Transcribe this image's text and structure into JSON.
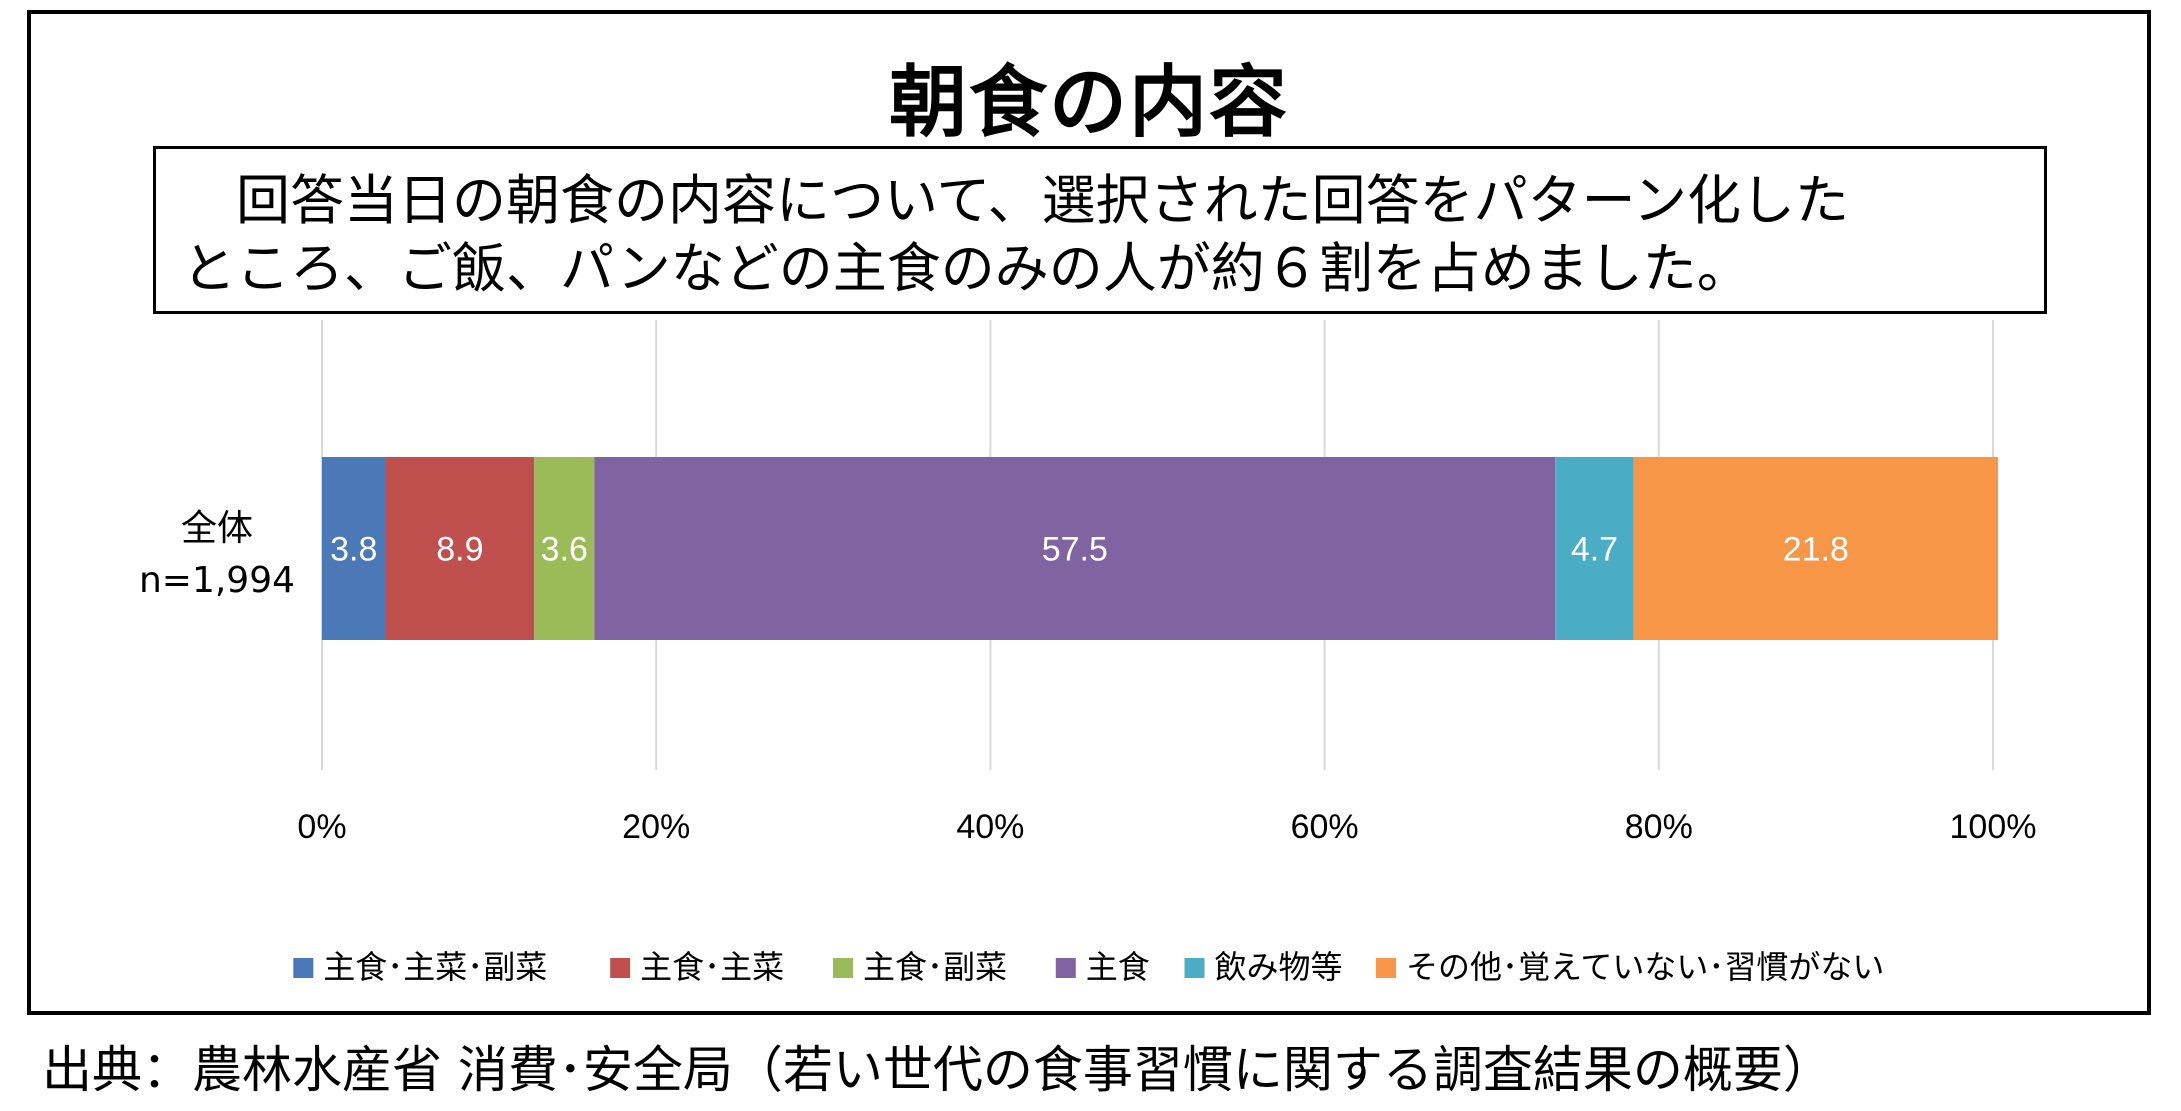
{
  "chart_data": {
    "type": "bar",
    "orientation": "horizontal-stacked",
    "title": "朝食の内容",
    "description_lines": [
      "回答当日の朝食の内容について、選択された回答をパターン化した",
      "ところ、ご飯、パンなどの主食のみの人が約６割を占めました。"
    ],
    "categories": [
      "全体\nn=1,994"
    ],
    "category_lines": [
      "全体",
      "n=1,994"
    ],
    "series": [
      {
        "name": "主食･主菜･副菜",
        "values": [
          3.8
        ],
        "color": "#4b79b8"
      },
      {
        "name": "主食･主菜",
        "values": [
          8.9
        ],
        "color": "#c0504d"
      },
      {
        "name": "主食･副菜",
        "values": [
          3.6
        ],
        "color": "#9bbb59"
      },
      {
        "name": "主食",
        "values": [
          57.5
        ],
        "color": "#8064a2"
      },
      {
        "name": "飲み物等",
        "values": [
          4.7
        ],
        "color": "#4bacc6"
      },
      {
        "name": "その他･覚えていない･習慣がない",
        "values": [
          21.8
        ],
        "color": "#f79646"
      }
    ],
    "xlim": [
      0,
      100
    ],
    "x_ticks": [
      "0%",
      "20%",
      "40%",
      "60%",
      "80%",
      "100%"
    ],
    "grid": true,
    "legend_position": "bottom"
  },
  "source": "出典：農林水産省 消費･安全局（若い世代の食事習慣に関する調査結果の概要）"
}
